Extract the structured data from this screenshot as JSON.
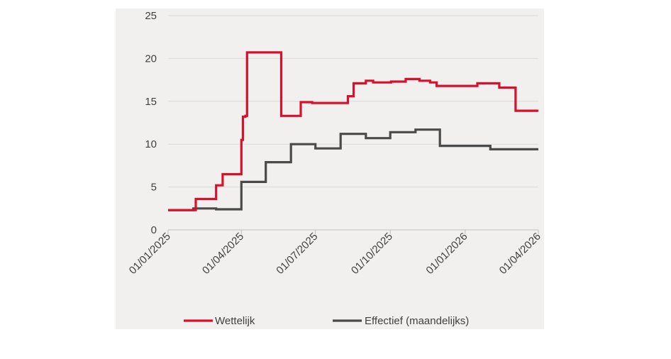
{
  "chart_data": {
    "type": "line",
    "x_type": "date",
    "xlim": [
      "2025-01-01",
      "2026-04-01"
    ],
    "ylim": [
      0,
      25
    ],
    "y_ticks": [
      0,
      5,
      10,
      15,
      20,
      25
    ],
    "x_ticks": [
      "2025-01-01",
      "2025-04-01",
      "2025-07-01",
      "2025-10-01",
      "2026-01-01",
      "2026-04-01"
    ],
    "x_tick_labels": [
      "01/01/2025",
      "01/04/2025",
      "01/07/2025",
      "01/10/2025",
      "01/01/2026",
      "01/04/2026"
    ],
    "grid": "horizontal",
    "legend_position": "bottom",
    "series": [
      {
        "name": "Wettelijk",
        "color": "#d7102b",
        "step": true,
        "points": [
          [
            "2025-01-01",
            2.3
          ],
          [
            "2025-02-04",
            3.6
          ],
          [
            "2025-03-01",
            5.2
          ],
          [
            "2025-03-09",
            6.5
          ],
          [
            "2025-04-01",
            10.5
          ],
          [
            "2025-04-03",
            13.2
          ],
          [
            "2025-04-06",
            13.3
          ],
          [
            "2025-04-08",
            20.7
          ],
          [
            "2025-05-20",
            13.3
          ],
          [
            "2025-06-13",
            14.9
          ],
          [
            "2025-06-27",
            14.8
          ],
          [
            "2025-08-10",
            15.6
          ],
          [
            "2025-08-17",
            17.1
          ],
          [
            "2025-09-01",
            17.4
          ],
          [
            "2025-09-10",
            17.2
          ],
          [
            "2025-10-02",
            17.3
          ],
          [
            "2025-10-20",
            17.6
          ],
          [
            "2025-11-06",
            17.4
          ],
          [
            "2025-11-19",
            17.2
          ],
          [
            "2025-11-27",
            16.8
          ],
          [
            "2026-01-16",
            17.1
          ],
          [
            "2026-02-12",
            16.6
          ],
          [
            "2026-03-04",
            13.9
          ],
          [
            "2026-04-01",
            13.9
          ]
        ]
      },
      {
        "name": "Effectief (maandelijks)",
        "color": "#4a4a4a",
        "step": true,
        "points": [
          [
            "2025-01-01",
            2.3
          ],
          [
            "2025-02-01",
            2.5
          ],
          [
            "2025-03-01",
            2.4
          ],
          [
            "2025-04-01",
            5.6
          ],
          [
            "2025-05-01",
            7.9
          ],
          [
            "2025-06-01",
            10.0
          ],
          [
            "2025-07-01",
            9.5
          ],
          [
            "2025-08-01",
            11.2
          ],
          [
            "2025-09-01",
            10.7
          ],
          [
            "2025-10-01",
            11.4
          ],
          [
            "2025-11-01",
            11.7
          ],
          [
            "2025-12-01",
            9.8
          ],
          [
            "2026-02-01",
            9.4
          ],
          [
            "2026-04-01",
            9.4
          ]
        ]
      }
    ]
  }
}
